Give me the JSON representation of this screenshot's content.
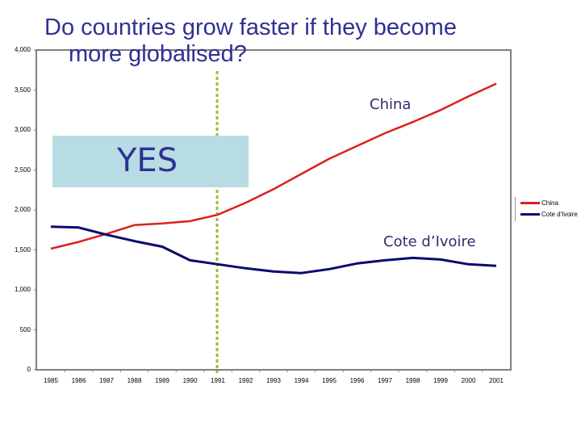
{
  "title": {
    "line1": "Do countries grow faster if they become",
    "line2": "more globalised?"
  },
  "annotations": {
    "yes": "YES",
    "china_label": "China",
    "cote_label": "Cote d’Ivoire"
  },
  "colors": {
    "china": "#dd1f1f",
    "cote": "#0a0a6e",
    "marker_line": "#9abd35",
    "yes_box": "#b8dce3",
    "title": "#2e3192",
    "axis": "#808080"
  },
  "legend": {
    "items": [
      {
        "label": "China",
        "color": "#dd1f1f"
      },
      {
        "label": "Cote d'Ivoire",
        "color": "#0a0a6e"
      }
    ]
  },
  "chart_data": {
    "type": "line",
    "title": "Do countries grow faster if they become more globalised?",
    "xlabel": "",
    "ylabel": "",
    "x": [
      1985,
      1986,
      1987,
      1988,
      1989,
      1990,
      1991,
      1992,
      1993,
      1994,
      1995,
      1996,
      1997,
      1998,
      1999,
      2000,
      2001
    ],
    "x_tick_labels": [
      "1985",
      "1986",
      "1987",
      "1988",
      "1989",
      "1990",
      "1991",
      "1992",
      "1993",
      "1994",
      "1995",
      "1996",
      "1997",
      "1998",
      "1999",
      "2000",
      "2001"
    ],
    "y_tick_labels": [
      "0",
      "500",
      "1,000",
      "1,500",
      "2,000",
      "2,500",
      "3,000",
      "3,500",
      "4,000"
    ],
    "ylim": [
      0,
      4000
    ],
    "grid": false,
    "legend_position": "right",
    "series": [
      {
        "name": "China",
        "color": "#dd1f1f",
        "values": [
          1515,
          1600,
          1700,
          1810,
          1830,
          1860,
          1940,
          2090,
          2260,
          2450,
          2640,
          2800,
          2960,
          3100,
          3250,
          3420,
          3580
        ]
      },
      {
        "name": "Cote d'Ivoire",
        "color": "#0a0a6e",
        "values": [
          1790,
          1780,
          1690,
          1610,
          1540,
          1370,
          1320,
          1270,
          1230,
          1210,
          1260,
          1330,
          1370,
          1400,
          1380,
          1320,
          1300
        ]
      }
    ],
    "annotations": [
      {
        "type": "vertical_dashed_line",
        "x": 1991,
        "color": "#9abd35"
      },
      {
        "type": "text_box",
        "text": "YES"
      },
      {
        "type": "label",
        "text": "China"
      },
      {
        "type": "label",
        "text": "Cote d’Ivoire"
      }
    ]
  }
}
